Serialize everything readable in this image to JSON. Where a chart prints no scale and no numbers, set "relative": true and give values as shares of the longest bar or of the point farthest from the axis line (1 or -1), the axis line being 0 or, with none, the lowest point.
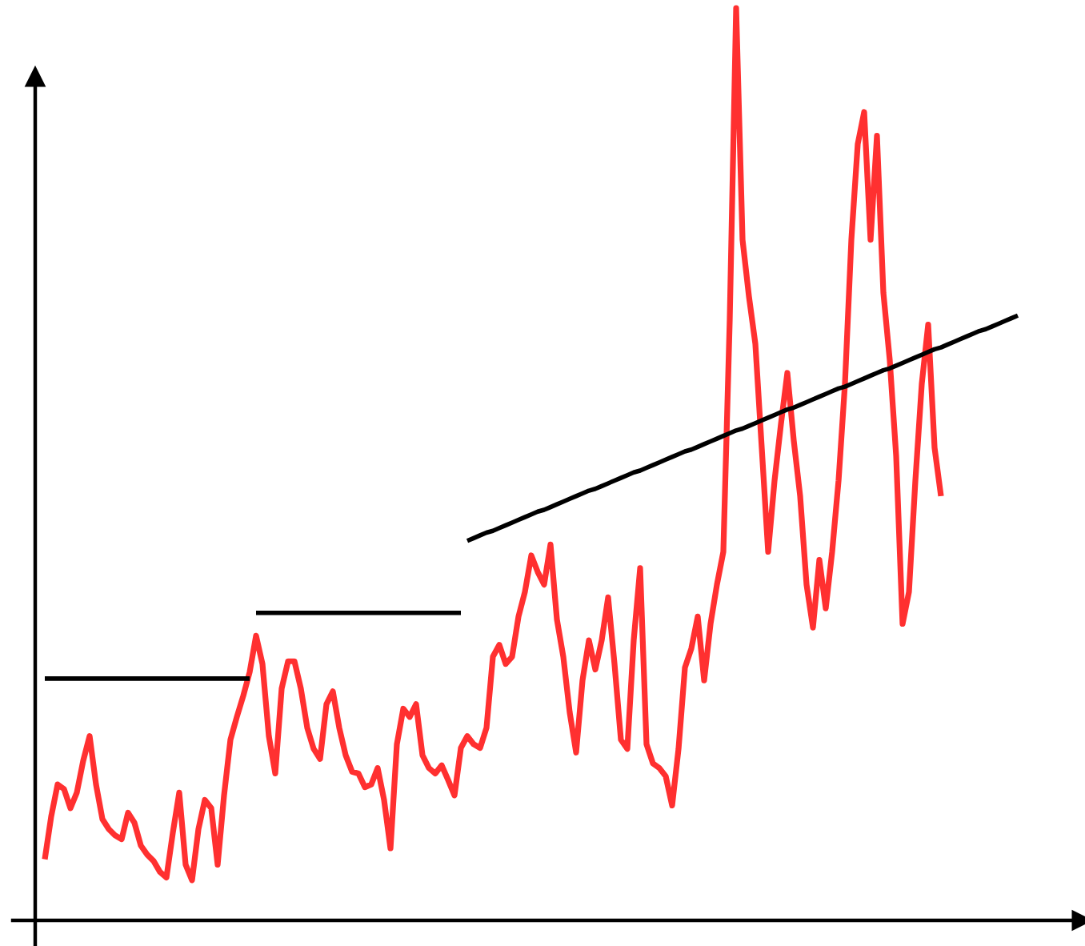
{
  "chart_data": {
    "type": "line",
    "relative": true,
    "categories": [
      null,
      null,
      null,
      null,
      null,
      null,
      null,
      null,
      null,
      null,
      null,
      null,
      null,
      null,
      null,
      null,
      null,
      null,
      null,
      null,
      null,
      null,
      null,
      null,
      null,
      null,
      null,
      null,
      null,
      null,
      null,
      null,
      null,
      null,
      null,
      null,
      null,
      null,
      null,
      null,
      null,
      null,
      null,
      null,
      null,
      null,
      null,
      null,
      null,
      null,
      null,
      null,
      null,
      null,
      null,
      null,
      null,
      null,
      null,
      null,
      null,
      null,
      null,
      null,
      null,
      null,
      null,
      null,
      null,
      null,
      null,
      null,
      null,
      null,
      null,
      null,
      null,
      null,
      null,
      null,
      null,
      null,
      null,
      null,
      null,
      null,
      null,
      null,
      null,
      null,
      null,
      null,
      null,
      null,
      null,
      null,
      null,
      null,
      null,
      null,
      null,
      null,
      null,
      null,
      null,
      null,
      null,
      null,
      null,
      null,
      null,
      null,
      null,
      null,
      null,
      null,
      null,
      null,
      null,
      null,
      null,
      null,
      null,
      null,
      null,
      null,
      null,
      null,
      null,
      null,
      null,
      null,
      null,
      null,
      null,
      null,
      null,
      null,
      null,
      null,
      null,
      null,
      null,
      null,
      null,
      null,
      null,
      null,
      null,
      null,
      null,
      null,
      null
    ],
    "series": [
      {
        "color": "#ff3030",
        "values": [
          0.067,
          0.114,
          0.149,
          0.144,
          0.123,
          0.14,
          0.175,
          0.202,
          0.149,
          0.111,
          0.1,
          0.093,
          0.089,
          0.118,
          0.107,
          0.082,
          0.072,
          0.065,
          0.053,
          0.047,
          0.096,
          0.14,
          0.061,
          0.044,
          0.1,
          0.132,
          0.123,
          0.061,
          0.137,
          0.198,
          0.223,
          0.246,
          0.272,
          0.312,
          0.281,
          0.202,
          0.161,
          0.254,
          0.284,
          0.284,
          0.254,
          0.211,
          0.188,
          0.177,
          0.237,
          0.251,
          0.211,
          0.181,
          0.163,
          0.161,
          0.146,
          0.149,
          0.167,
          0.132,
          0.079,
          0.193,
          0.232,
          0.223,
          0.237,
          0.181,
          0.167,
          0.161,
          0.17,
          0.154,
          0.137,
          0.189,
          0.202,
          0.193,
          0.189,
          0.211,
          0.289,
          0.302,
          0.281,
          0.289,
          0.333,
          0.36,
          0.4,
          0.382,
          0.368,
          0.412,
          0.33,
          0.289,
          0.228,
          0.184,
          0.263,
          0.307,
          0.275,
          0.307,
          0.354,
          0.281,
          0.198,
          0.188,
          0.307,
          0.386,
          0.193,
          0.172,
          0.167,
          0.158,
          0.126,
          0.188,
          0.277,
          0.298,
          0.333,
          0.263,
          0.325,
          0.368,
          0.404,
          0.658,
          1,
          0.746,
          0.684,
          0.632,
          0.518,
          0.404,
          0.482,
          0.544,
          0.6,
          0.526,
          0.465,
          0.368,
          0.321,
          0.395,
          0.342,
          0.404,
          0.482,
          0.588,
          0.746,
          0.851,
          0.886,
          0.746,
          0.86,
          0.688,
          0.614,
          0.509,
          0.325,
          0.36,
          0.482,
          0.588,
          0.653,
          0.518,
          0.465,
          null,
          null,
          null,
          null,
          null,
          null,
          null,
          null,
          null,
          null,
          null,
          null
        ]
      },
      {
        "color": "#000000",
        "values": [
          0.265,
          0.265,
          0.265,
          0.265,
          0.265,
          0.265,
          0.265,
          0.265,
          0.265,
          0.265,
          0.265,
          0.265,
          0.265,
          0.265,
          0.265,
          0.265,
          0.265,
          0.265,
          0.265,
          0.265,
          0.265,
          0.265,
          0.265,
          0.265,
          0.265,
          0.265,
          0.265,
          0.265,
          0.265,
          0.265,
          0.265,
          0.265,
          0.265,
          null,
          null,
          null,
          null,
          null,
          null,
          null,
          null,
          null,
          null,
          null,
          null,
          null,
          null,
          null,
          null,
          null,
          null,
          null,
          null,
          null,
          null,
          null,
          null,
          null,
          null,
          null,
          null,
          null,
          null,
          null,
          null,
          null,
          null,
          null,
          null,
          null,
          null,
          null,
          null,
          null,
          null,
          null,
          null,
          null,
          null,
          null,
          null,
          null,
          null,
          null,
          null,
          null,
          null,
          null,
          null,
          null,
          null,
          null,
          null,
          null,
          null,
          null,
          null,
          null,
          null,
          null,
          null,
          null,
          null,
          null,
          null,
          null,
          null,
          null,
          null,
          null,
          null,
          null,
          null,
          null,
          null,
          null,
          null,
          null,
          null,
          null,
          null,
          null,
          null,
          null,
          null,
          null,
          null,
          null,
          null,
          null,
          null,
          null,
          null,
          null,
          null,
          null,
          null,
          null,
          null,
          null,
          null,
          null,
          null,
          null,
          null,
          null,
          null,
          null,
          null,
          null,
          null,
          null,
          null
        ]
      },
      {
        "color": "#000000",
        "values": [
          null,
          null,
          null,
          null,
          null,
          null,
          null,
          null,
          null,
          null,
          null,
          null,
          null,
          null,
          null,
          null,
          null,
          null,
          null,
          null,
          null,
          null,
          null,
          null,
          null,
          null,
          null,
          null,
          null,
          null,
          null,
          null,
          null,
          0.337,
          0.337,
          0.337,
          0.337,
          0.337,
          0.337,
          0.337,
          0.337,
          0.337,
          0.337,
          0.337,
          0.337,
          0.337,
          0.337,
          0.337,
          0.337,
          0.337,
          0.337,
          0.337,
          0.337,
          0.337,
          0.337,
          0.337,
          0.337,
          0.337,
          0.337,
          0.337,
          0.337,
          0.337,
          0.337,
          0.337,
          0.337,
          0.337,
          null,
          null,
          null,
          null,
          null,
          null,
          null,
          null,
          null,
          null,
          null,
          null,
          null,
          null,
          null,
          null,
          null,
          null,
          null,
          null,
          null,
          null,
          null,
          null,
          null,
          null,
          null,
          null,
          null,
          null,
          null,
          null,
          null,
          null,
          null,
          null,
          null,
          null,
          null,
          null,
          null,
          null,
          null,
          null,
          null,
          null,
          null,
          null,
          null,
          null,
          null,
          null,
          null,
          null,
          null,
          null,
          null,
          null,
          null,
          null,
          null,
          null,
          null,
          null,
          null,
          null,
          null,
          null,
          null,
          null,
          null,
          null,
          null,
          null,
          null,
          null,
          null,
          null,
          null,
          null,
          null,
          null,
          null,
          null,
          null,
          null,
          null
        ]
      },
      {
        "color": "#000000",
        "values": [
          null,
          null,
          null,
          null,
          null,
          null,
          null,
          null,
          null,
          null,
          null,
          null,
          null,
          null,
          null,
          null,
          null,
          null,
          null,
          null,
          null,
          null,
          null,
          null,
          null,
          null,
          null,
          null,
          null,
          null,
          null,
          null,
          null,
          null,
          null,
          null,
          null,
          null,
          null,
          null,
          null,
          null,
          null,
          null,
          null,
          null,
          null,
          null,
          null,
          null,
          null,
          null,
          null,
          null,
          null,
          null,
          null,
          null,
          null,
          null,
          null,
          null,
          null,
          null,
          null,
          null,
          0.416,
          0.419,
          0.422,
          0.425,
          0.427,
          0.43,
          0.433,
          0.436,
          0.439,
          0.442,
          0.445,
          0.448,
          0.45,
          0.453,
          0.456,
          0.459,
          0.462,
          0.465,
          0.468,
          0.471,
          0.473,
          0.476,
          0.479,
          0.482,
          0.485,
          0.488,
          0.491,
          0.493,
          0.496,
          0.499,
          0.502,
          0.505,
          0.508,
          0.511,
          0.514,
          0.516,
          0.519,
          0.522,
          0.525,
          0.528,
          0.531,
          0.534,
          0.537,
          0.539,
          0.542,
          0.545,
          0.548,
          0.551,
          0.554,
          0.557,
          0.56,
          0.562,
          0.565,
          0.568,
          0.571,
          0.574,
          0.577,
          0.58,
          0.583,
          0.585,
          0.588,
          0.591,
          0.594,
          0.597,
          0.6,
          0.603,
          0.605,
          0.608,
          0.611,
          0.614,
          0.617,
          0.62,
          0.623,
          0.626,
          0.628,
          0.631,
          0.634,
          0.637,
          0.64,
          0.643,
          0.646,
          0.648,
          0.651,
          0.654,
          0.657,
          0.66,
          0.663
        ]
      }
    ]
  }
}
